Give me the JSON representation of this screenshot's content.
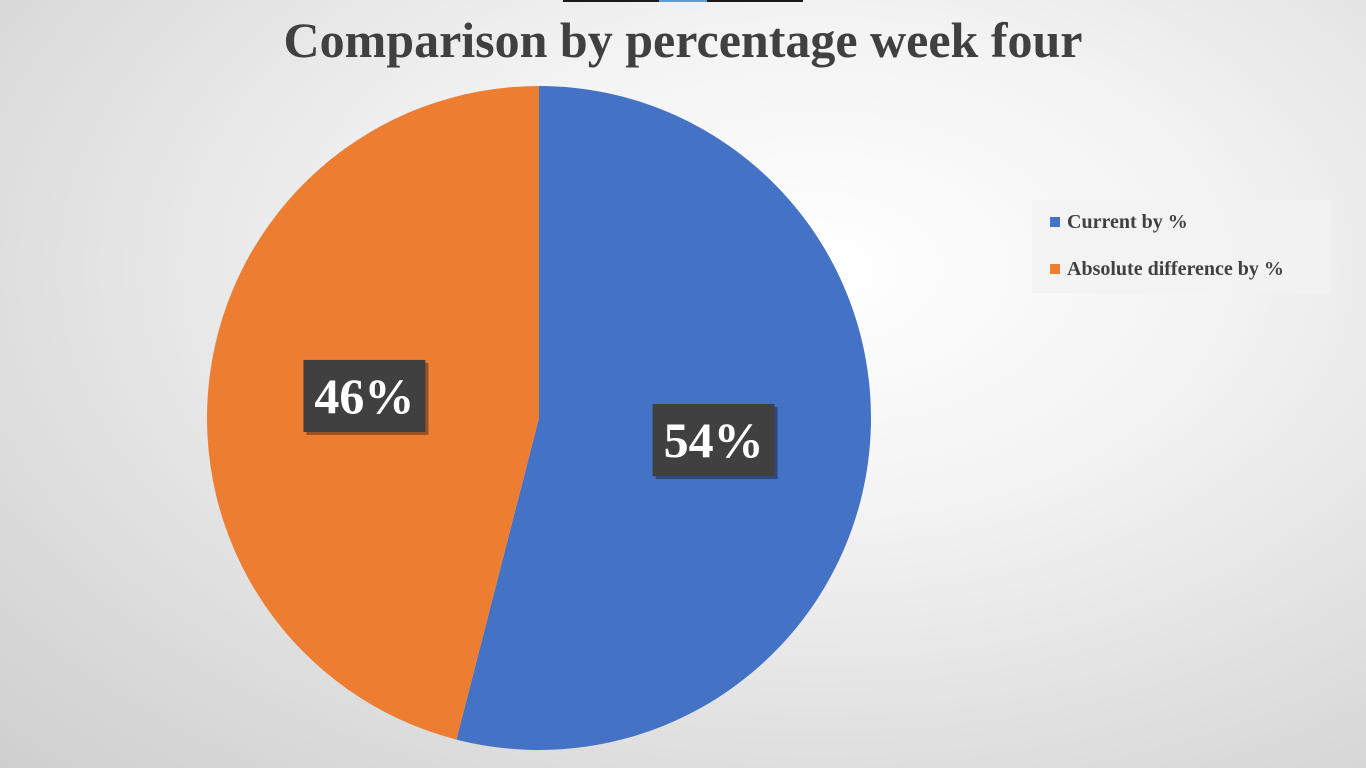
{
  "chart_data": {
    "type": "pie",
    "title": "Comparison by percentage week four",
    "slices": [
      {
        "label": "Current by %",
        "value": 54,
        "display": "54%",
        "color": "#4472c4"
      },
      {
        "label": "Absolute difference by %",
        "value": 46,
        "display": "46%",
        "color": "#ed7d31"
      }
    ],
    "legend": {
      "position": "right",
      "items": [
        {
          "label": "Current by %",
          "color": "#4472c4"
        },
        {
          "label": "Absolute difference by %",
          "color": "#ed7d31"
        }
      ]
    },
    "data_label_style": {
      "background": "#404040",
      "color": "#ffffff"
    }
  }
}
